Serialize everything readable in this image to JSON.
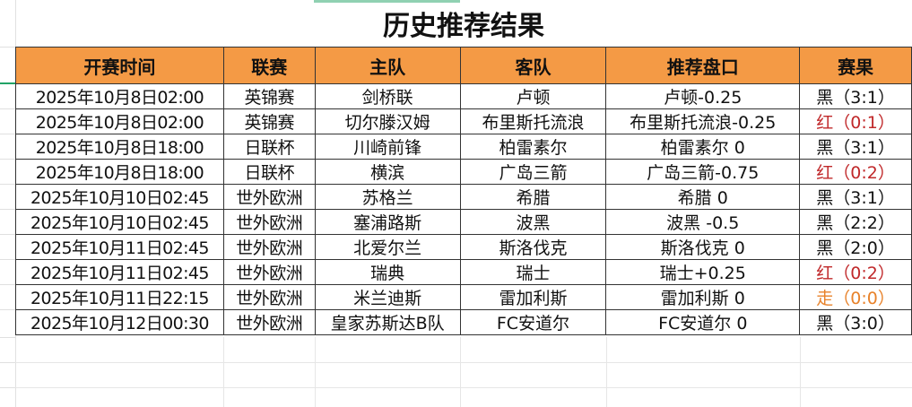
{
  "title": "历史推荐结果",
  "colors": {
    "header_bg": "#f49a45",
    "red": "#c0282a",
    "orange": "#e8822a",
    "black": "#111111"
  },
  "columns": [
    "开赛时间",
    "联赛",
    "主队",
    "客队",
    "推荐盘口",
    "赛果"
  ],
  "rows": [
    {
      "time": "2025年10月8日02:00",
      "league": "英锦赛",
      "home": "剑桥联",
      "away": "卢顿",
      "pick": "卢顿-0.25",
      "result": "黑（3:1）",
      "result_color": "black"
    },
    {
      "time": "2025年10月8日02:00",
      "league": "英锦赛",
      "home": "切尔滕汉姆",
      "away": "布里斯托流浪",
      "pick": "布里斯托流浪-0.25",
      "result": "红（0:1）",
      "result_color": "red"
    },
    {
      "time": "2025年10月8日18:00",
      "league": "日联杯",
      "home": "川崎前锋",
      "away": "柏雷素尔",
      "pick": "柏雷素尔 0",
      "result": "黑（3:1）",
      "result_color": "black"
    },
    {
      "time": "2025年10月8日18:00",
      "league": "日联杯",
      "home": "横滨",
      "away": "广岛三箭",
      "pick": "广岛三箭-0.75",
      "result": "红（0:2）",
      "result_color": "red"
    },
    {
      "time": "2025年10月10日02:45",
      "league": "世外欧洲",
      "home": "苏格兰",
      "away": "希腊",
      "pick": "希腊 0",
      "result": "黑（3:1）",
      "result_color": "black"
    },
    {
      "time": "2025年10月10日02:45",
      "league": "世外欧洲",
      "home": "塞浦路斯",
      "away": "波黑",
      "pick": "波黑 -0.5",
      "result": "黑（2:2）",
      "result_color": "black"
    },
    {
      "time": "2025年10月11日02:45",
      "league": "世外欧洲",
      "home": "北爱尔兰",
      "away": "斯洛伐克",
      "pick": "斯洛伐克 0",
      "result": "黑（2:0）",
      "result_color": "black"
    },
    {
      "time": "2025年10月11日02:45",
      "league": "世外欧洲",
      "home": "瑞典",
      "away": "瑞士",
      "pick": "瑞士+0.25",
      "result": "红（0:2）",
      "result_color": "red"
    },
    {
      "time": "2025年10月11日22:15",
      "league": "世外欧洲",
      "home": "米兰迪斯",
      "away": "雷加利斯",
      "pick": "雷加利斯 0",
      "result": "走（0:0）",
      "result_color": "orange"
    },
    {
      "time": "2025年10月12日00:30",
      "league": "世外欧洲",
      "home": "皇家苏斯达B队",
      "away": "FC安道尔",
      "pick": "FC安道尔 0",
      "result": "黑（3:0）",
      "result_color": "black"
    }
  ]
}
